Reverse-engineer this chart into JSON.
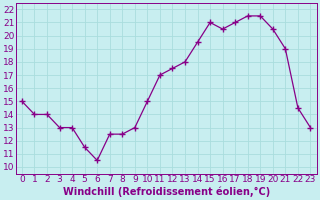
{
  "x": [
    0,
    1,
    2,
    3,
    4,
    5,
    6,
    7,
    8,
    9,
    10,
    11,
    12,
    13,
    14,
    15,
    16,
    17,
    18,
    19,
    20,
    21,
    22,
    23
  ],
  "y": [
    15,
    14,
    14,
    13,
    13,
    11.5,
    10.5,
    12.5,
    12.5,
    13,
    15,
    17,
    17.5,
    18,
    19.5,
    21,
    20.5,
    21,
    21.5,
    21.5,
    20.5,
    19,
    14.5,
    13
  ],
  "line_color": "#880088",
  "marker": "+",
  "marker_size": 4,
  "bg_color": "#c8eef0",
  "grid_color": "#aadddd",
  "xlabel": "Windchill (Refroidissement éolien,°C)",
  "ylabel_ticks": [
    10,
    11,
    12,
    13,
    14,
    15,
    16,
    17,
    18,
    19,
    20,
    21,
    22
  ],
  "ylim": [
    9.5,
    22.5
  ],
  "xlim": [
    -0.5,
    23.5
  ],
  "xticks": [
    0,
    1,
    2,
    3,
    4,
    5,
    6,
    7,
    8,
    9,
    10,
    11,
    12,
    13,
    14,
    15,
    16,
    17,
    18,
    19,
    20,
    21,
    22,
    23
  ],
  "xlabel_fontsize": 7,
  "tick_fontsize": 6.5,
  "line_width": 0.9
}
